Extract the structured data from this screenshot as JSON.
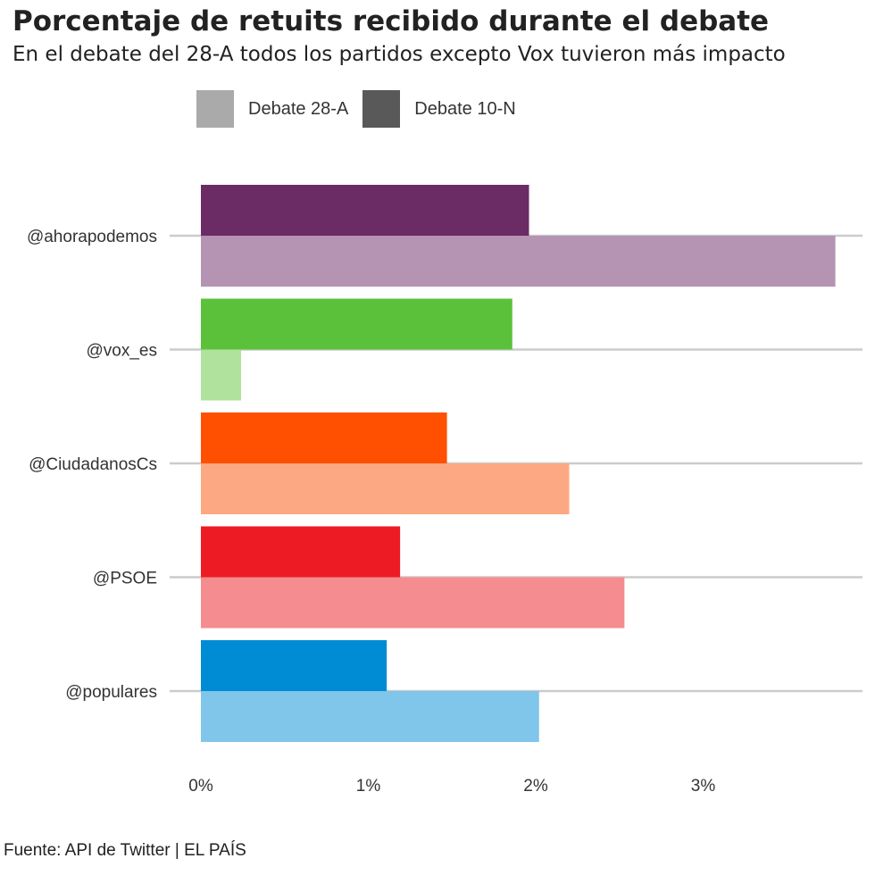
{
  "title": "Porcentaje de retuits recibido durante el debate",
  "subtitle": "En el debate del 28-A todos los partidos excepto Vox tuvieron más impacto",
  "caption": "Fuente: API de Twitter | EL PAÍS",
  "legend": [
    {
      "label": "Debate 28-A",
      "color": "#aaaaaa"
    },
    {
      "label": "Debate 10-N",
      "color": "#595959"
    }
  ],
  "chart_data": {
    "type": "bar",
    "orientation": "horizontal",
    "categories": [
      "@ahorapodemos",
      "@vox_es",
      "@CiudadanosCs",
      "@PSOE",
      "@populares"
    ],
    "series": [
      {
        "name": "Debate 10-N",
        "values": [
          1.96,
          1.86,
          1.47,
          1.19,
          1.11
        ]
      },
      {
        "name": "Debate 28-A",
        "values": [
          3.79,
          0.24,
          2.2,
          2.53,
          2.02
        ]
      }
    ],
    "colors_10N": [
      "#6b2c66",
      "#5cc13a",
      "#fe5000",
      "#ed1c24",
      "#008bd5"
    ],
    "colors_28A": [
      "#b593b2",
      "#b0e19d",
      "#fca882",
      "#f58c90",
      "#80c5ea"
    ],
    "xticks": [
      "0%",
      "1%",
      "2%",
      "3%"
    ],
    "xtick_values": [
      0,
      1,
      2,
      3
    ],
    "xlim": [
      0,
      3.79
    ],
    "grid": true,
    "legend_position": "top-left"
  }
}
